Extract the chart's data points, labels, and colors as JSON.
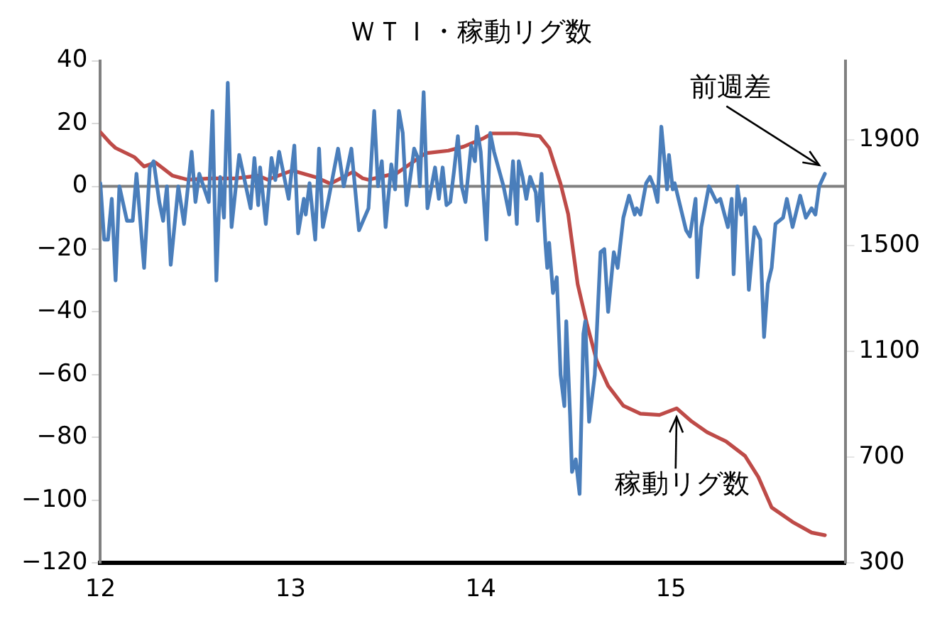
{
  "chart_data": {
    "type": "line",
    "title": "ＷＴＩ・稼動リグ数",
    "xlim": [
      12,
      15.92
    ],
    "xticks": [
      12,
      13,
      14,
      15
    ],
    "ylim": [
      -120,
      40
    ],
    "yticks": [
      -120,
      -100,
      -80,
      -60,
      -40,
      -20,
      0,
      20,
      40
    ],
    "y2lim": [
      300,
      2200
    ],
    "y2ticks": [
      300,
      700,
      1100,
      1500,
      1900
    ],
    "grid": false,
    "legend": false,
    "marker": "none",
    "line_style": "solid",
    "ref_lines": [
      {
        "axis": "y",
        "value": 0,
        "color": "#808080"
      }
    ],
    "series": [
      {
        "name": "前週差",
        "color": "#4a7ebb",
        "x": [
          12.0,
          12.02,
          12.04,
          12.06,
          12.08,
          12.1,
          12.14,
          12.17,
          12.19,
          12.23,
          12.26,
          12.28,
          12.31,
          12.33,
          12.35,
          12.37,
          12.41,
          12.44,
          12.48,
          12.5,
          12.52,
          12.57,
          12.59,
          12.61,
          12.63,
          12.65,
          12.67,
          12.69,
          12.73,
          12.79,
          12.81,
          12.83,
          12.84,
          12.87,
          12.9,
          12.92,
          12.94,
          12.99,
          13.02,
          13.04,
          13.07,
          13.08,
          13.1,
          13.13,
          13.15,
          13.17,
          13.2,
          13.25,
          13.28,
          13.32,
          13.36,
          13.41,
          13.44,
          13.46,
          13.48,
          13.5,
          13.53,
          13.55,
          13.57,
          13.59,
          13.61,
          13.65,
          13.67,
          13.68,
          13.7,
          13.72,
          13.76,
          13.78,
          13.8,
          13.82,
          13.84,
          13.86,
          13.88,
          13.9,
          13.92,
          13.95,
          13.97,
          13.98,
          14.0,
          14.03,
          14.05,
          14.07,
          14.12,
          14.15,
          14.17,
          14.19,
          14.2,
          14.22,
          14.24,
          14.26,
          14.29,
          14.3,
          14.32,
          14.34,
          14.35,
          14.36,
          14.38,
          14.4,
          14.42,
          14.44,
          14.45,
          14.47,
          14.48,
          14.5,
          14.52,
          14.54,
          14.55,
          14.57,
          14.6,
          14.63,
          14.65,
          14.67,
          14.7,
          14.72,
          14.75,
          14.78,
          14.81,
          14.82,
          14.84,
          14.87,
          14.89,
          14.91,
          14.93,
          14.95,
          14.98,
          14.99,
          15.01,
          15.02,
          15.08,
          15.1,
          15.13,
          15.14,
          15.16,
          15.2,
          15.24,
          15.26,
          15.3,
          15.32,
          15.33,
          15.35,
          15.37,
          15.39,
          15.41,
          15.44,
          15.47,
          15.49,
          15.51,
          15.53,
          15.55,
          15.59,
          15.61,
          15.64,
          15.68,
          15.71,
          15.74,
          15.76,
          15.78,
          15.81
        ],
        "values": [
          1,
          -17,
          -17,
          -4,
          -30,
          0,
          -11,
          -11,
          4,
          -26,
          6,
          8,
          -5,
          -11,
          0,
          -25,
          0,
          -12,
          11,
          -5,
          4,
          -5,
          24,
          -30,
          3,
          -10,
          33,
          -13,
          10,
          -7,
          9,
          -6,
          6,
          -12,
          9,
          2,
          11,
          -4,
          13,
          -15,
          -4,
          -9,
          1,
          -17,
          12,
          -13,
          -4,
          12,
          0,
          12,
          -14,
          -7,
          24,
          0,
          8,
          -13,
          7,
          -1,
          24,
          17,
          -6,
          12,
          9,
          0,
          30,
          -7,
          6,
          -4,
          6,
          -6,
          -5,
          5,
          16,
          0,
          -5,
          13,
          8,
          19,
          11,
          -17,
          17,
          11,
          0,
          -9,
          8,
          -12,
          8,
          3,
          -4,
          3,
          -2,
          -11,
          4,
          -18,
          -26,
          -18,
          -34,
          -29,
          -60,
          -70,
          -43,
          -73,
          -91,
          -87,
          -98,
          -47,
          -43,
          -75,
          -60,
          -21,
          -20,
          -40,
          -21,
          -26,
          -10,
          -3,
          -9,
          -7,
          -9,
          1,
          3,
          0,
          -5,
          19,
          -1,
          10,
          -1,
          1,
          -14,
          -16,
          -4,
          -29,
          -13,
          0,
          -5,
          -4,
          -13,
          -4,
          -28,
          0,
          -9,
          -4,
          -33,
          -13,
          -17,
          -48,
          -31,
          -26,
          -12,
          -10,
          -4,
          -13,
          -3,
          -10,
          -7,
          -9,
          0,
          4
        ]
      },
      {
        "name": "稼動リグ数",
        "color": "#be4b48",
        "axis": "y2",
        "x": [
          12.0,
          12.05,
          12.08,
          12.18,
          12.23,
          12.29,
          12.38,
          12.46,
          12.58,
          12.71,
          12.83,
          12.88,
          13.01,
          13.13,
          13.21,
          13.33,
          13.38,
          13.41,
          13.56,
          13.71,
          13.83,
          13.91,
          14.01,
          14.06,
          14.19,
          14.31,
          14.36,
          14.42,
          14.46,
          14.51,
          14.56,
          14.61,
          14.67,
          14.75,
          14.84,
          14.94,
          15.03,
          15.11,
          15.19,
          15.29,
          15.39,
          15.46,
          15.53,
          15.64,
          15.74,
          15.81
        ],
        "values": [
          1930,
          1890,
          1870,
          1835,
          1800,
          1815,
          1765,
          1750,
          1755,
          1755,
          1765,
          1750,
          1785,
          1760,
          1735,
          1780,
          1755,
          1750,
          1775,
          1850,
          1860,
          1875,
          1905,
          1925,
          1925,
          1915,
          1870,
          1735,
          1620,
          1355,
          1200,
          1065,
          970,
          895,
          865,
          860,
          885,
          835,
          795,
          760,
          705,
          625,
          510,
          455,
          415,
          405
        ]
      }
    ]
  }
}
